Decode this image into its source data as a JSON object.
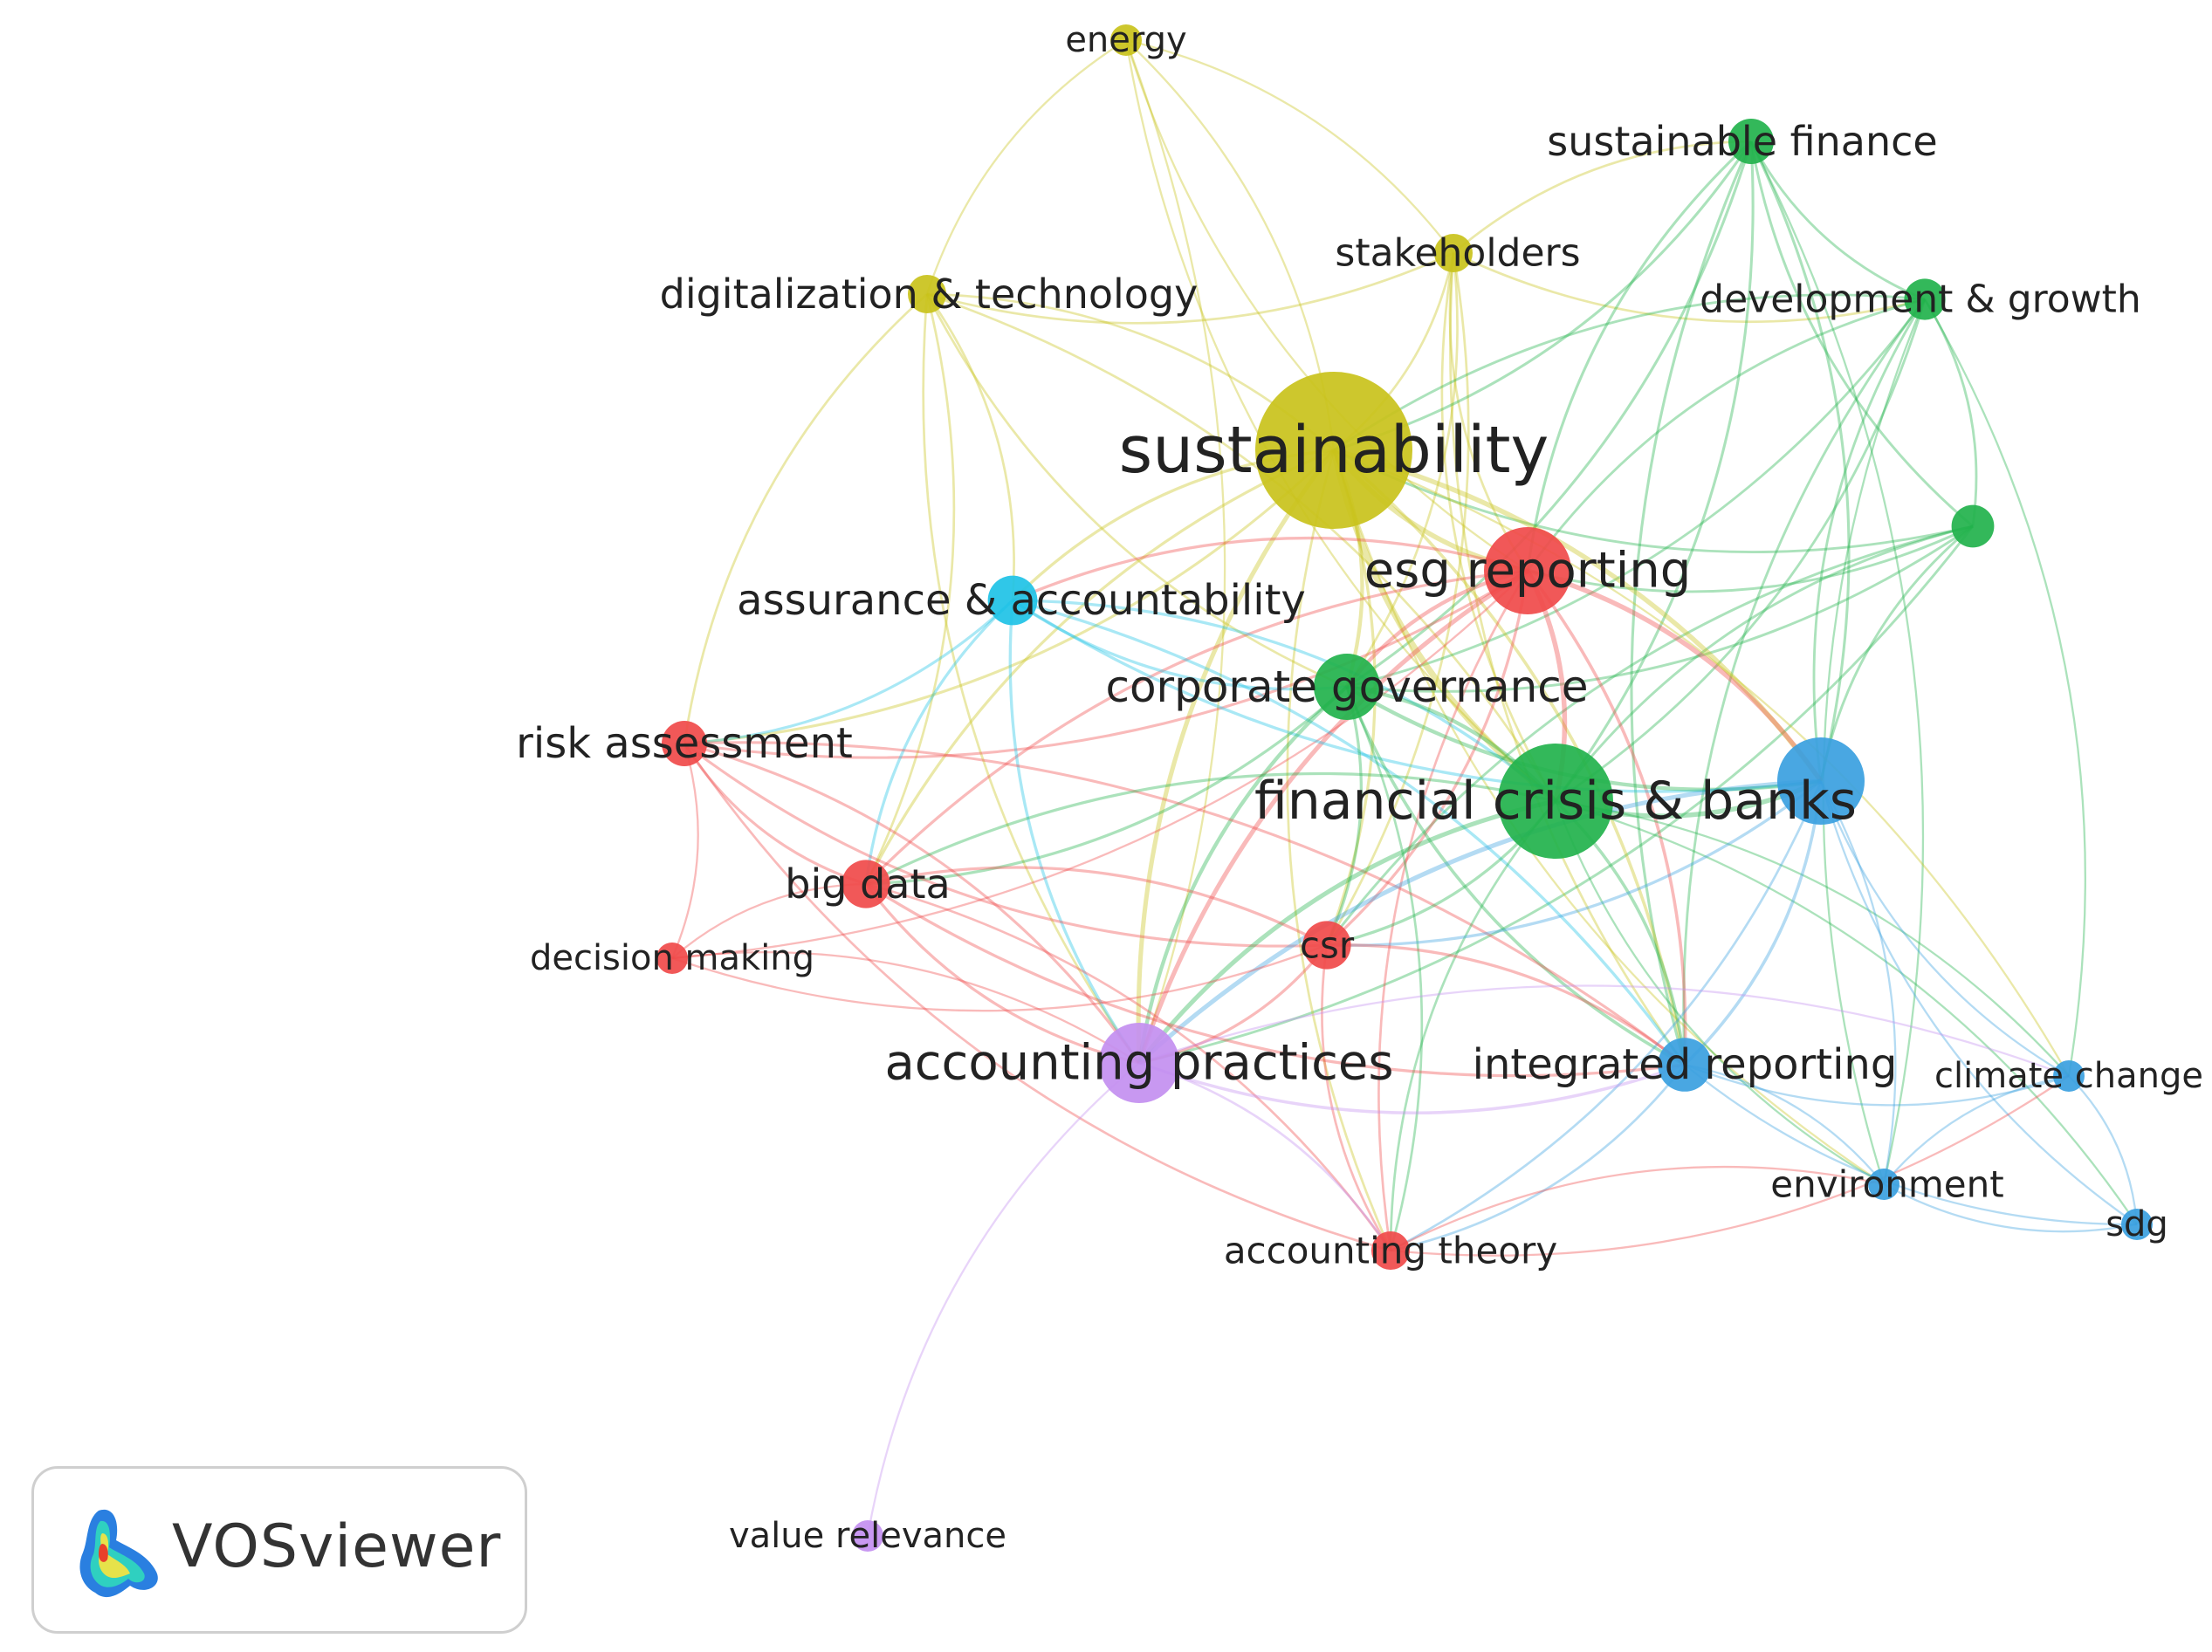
{
  "app": {
    "brand": "VOSviewer"
  },
  "palette": {
    "yellow": "#c9c21b",
    "green": "#22b24c",
    "red": "#f04a4a",
    "cyan": "#1ec2e6",
    "blue": "#3aa0e0",
    "purple": "#c38ff0"
  },
  "nodes": [
    {
      "id": "energy",
      "label": "energy",
      "cluster": "yellow",
      "weight": 1
    },
    {
      "id": "sustainable-finance",
      "label": "sustainable finance",
      "cluster": "green",
      "weight": 2
    },
    {
      "id": "stakeholders",
      "label": "stakeholders",
      "cluster": "yellow",
      "weight": 1.5
    },
    {
      "id": "digitalization",
      "label": "digitalization & technology",
      "cluster": "yellow",
      "weight": 1.5
    },
    {
      "id": "development",
      "label": "development & growth",
      "cluster": "green",
      "weight": 1.7
    },
    {
      "id": "sustainability",
      "label": "sustainability",
      "cluster": "yellow",
      "weight": 10
    },
    {
      "id": "green-unlabeled",
      "label": "",
      "cluster": "green",
      "weight": 1.8
    },
    {
      "id": "esg-reporting",
      "label": "esg reporting",
      "cluster": "red",
      "weight": 5
    },
    {
      "id": "assurance",
      "label": "assurance & accountability",
      "cluster": "cyan",
      "weight": 2.3
    },
    {
      "id": "corporate-governance",
      "label": "corporate governance",
      "cluster": "green",
      "weight": 3.5
    },
    {
      "id": "risk-assessment",
      "label": "risk assessment",
      "cluster": "red",
      "weight": 2
    },
    {
      "id": "financial-crisis",
      "label": "financial crisis & banks",
      "cluster": "green",
      "weight": 7
    },
    {
      "id": "blue-big",
      "label": "",
      "cluster": "blue",
      "weight": 5
    },
    {
      "id": "big-data",
      "label": "big data",
      "cluster": "red",
      "weight": 2.2
    },
    {
      "id": "decision-making",
      "label": "decision making",
      "cluster": "red",
      "weight": 1
    },
    {
      "id": "csr",
      "label": "csr",
      "cluster": "red",
      "weight": 2.2
    },
    {
      "id": "accounting-practices",
      "label": "accounting practices",
      "cluster": "purple",
      "weight": 4.5
    },
    {
      "id": "integrated-reporting",
      "label": "integrated reporting",
      "cluster": "blue",
      "weight": 2.6
    },
    {
      "id": "climate-change",
      "label": "climate change",
      "cluster": "blue",
      "weight": 1
    },
    {
      "id": "environment",
      "label": "environment",
      "cluster": "blue",
      "weight": 1
    },
    {
      "id": "sdg",
      "label": "sdg",
      "cluster": "blue",
      "weight": 1
    },
    {
      "id": "accounting-theory",
      "label": "accounting theory",
      "cluster": "red",
      "weight": 1.5
    },
    {
      "id": "value-relevance",
      "label": "value relevance",
      "cluster": "purple",
      "weight": 1
    }
  ],
  "links": [
    [
      "energy",
      "sustainability"
    ],
    [
      "energy",
      "digitalization"
    ],
    [
      "energy",
      "stakeholders"
    ],
    [
      "energy",
      "esg-reporting"
    ],
    [
      "energy",
      "accounting-practices"
    ],
    [
      "energy",
      "financial-crisis"
    ],
    [
      "digitalization",
      "sustainability"
    ],
    [
      "digitalization",
      "stakeholders"
    ],
    [
      "digitalization",
      "assurance"
    ],
    [
      "digitalization",
      "risk-assessment"
    ],
    [
      "digitalization",
      "big-data"
    ],
    [
      "digitalization",
      "accounting-practices"
    ],
    [
      "digitalization",
      "financial-crisis"
    ],
    [
      "digitalization",
      "corporate-governance"
    ],
    [
      "stakeholders",
      "sustainability"
    ],
    [
      "stakeholders",
      "esg-reporting"
    ],
    [
      "stakeholders",
      "corporate-governance"
    ],
    [
      "stakeholders",
      "financial-crisis"
    ],
    [
      "stakeholders",
      "sustainable-finance"
    ],
    [
      "stakeholders",
      "development"
    ],
    [
      "stakeholders",
      "csr"
    ],
    [
      "stakeholders",
      "integrated-reporting"
    ],
    [
      "sustainable-finance",
      "sustainability"
    ],
    [
      "sustainable-finance",
      "development"
    ],
    [
      "sustainable-finance",
      "financial-crisis"
    ],
    [
      "sustainable-finance",
      "esg-reporting"
    ],
    [
      "sustainable-finance",
      "corporate-governance"
    ],
    [
      "sustainable-finance",
      "green-unlabeled"
    ],
    [
      "sustainable-finance",
      "blue-big"
    ],
    [
      "sustainable-finance",
      "integrated-reporting"
    ],
    [
      "sustainable-finance",
      "environment"
    ],
    [
      "development",
      "sustainability"
    ],
    [
      "development",
      "financial-crisis"
    ],
    [
      "development",
      "esg-reporting"
    ],
    [
      "development",
      "green-unlabeled"
    ],
    [
      "development",
      "blue-big"
    ],
    [
      "development",
      "corporate-governance"
    ],
    [
      "development",
      "integrated-reporting"
    ],
    [
      "development",
      "climate-change"
    ],
    [
      "development",
      "environment"
    ],
    [
      "green-unlabeled",
      "esg-reporting"
    ],
    [
      "green-unlabeled",
      "financial-crisis"
    ],
    [
      "green-unlabeled",
      "sustainability"
    ],
    [
      "green-unlabeled",
      "blue-big"
    ],
    [
      "green-unlabeled",
      "corporate-governance"
    ],
    [
      "green-unlabeled",
      "csr"
    ],
    [
      "green-unlabeled",
      "accounting-practices"
    ],
    [
      "sustainability",
      "esg-reporting"
    ],
    [
      "sustainability",
      "corporate-governance"
    ],
    [
      "sustainability",
      "financial-crisis"
    ],
    [
      "sustainability",
      "blue-big"
    ],
    [
      "sustainability",
      "assurance"
    ],
    [
      "sustainability",
      "risk-assessment"
    ],
    [
      "sustainability",
      "big-data"
    ],
    [
      "sustainability",
      "csr"
    ],
    [
      "sustainability",
      "accounting-practices"
    ],
    [
      "sustainability",
      "integrated-reporting"
    ],
    [
      "sustainability",
      "accounting-theory"
    ],
    [
      "sustainability",
      "climate-change"
    ],
    [
      "sustainability",
      "environment"
    ],
    [
      "esg-reporting",
      "financial-crisis"
    ],
    [
      "esg-reporting",
      "corporate-governance"
    ],
    [
      "esg-reporting",
      "blue-big"
    ],
    [
      "esg-reporting",
      "assurance"
    ],
    [
      "esg-reporting",
      "risk-assessment"
    ],
    [
      "esg-reporting",
      "big-data"
    ],
    [
      "esg-reporting",
      "csr"
    ],
    [
      "esg-reporting",
      "accounting-practices"
    ],
    [
      "esg-reporting",
      "integrated-reporting"
    ],
    [
      "esg-reporting",
      "accounting-theory"
    ],
    [
      "esg-reporting",
      "decision-making"
    ],
    [
      "assurance",
      "corporate-governance"
    ],
    [
      "assurance",
      "financial-crisis"
    ],
    [
      "assurance",
      "blue-big"
    ],
    [
      "assurance",
      "risk-assessment"
    ],
    [
      "assurance",
      "big-data"
    ],
    [
      "assurance",
      "integrated-reporting"
    ],
    [
      "assurance",
      "accounting-practices"
    ],
    [
      "corporate-governance",
      "financial-crisis"
    ],
    [
      "corporate-governance",
      "blue-big"
    ],
    [
      "corporate-governance",
      "csr"
    ],
    [
      "corporate-governance",
      "accounting-practices"
    ],
    [
      "corporate-governance",
      "big-data"
    ],
    [
      "corporate-governance",
      "integrated-reporting"
    ],
    [
      "corporate-governance",
      "accounting-theory"
    ],
    [
      "risk-assessment",
      "big-data"
    ],
    [
      "risk-assessment",
      "decision-making"
    ],
    [
      "risk-assessment",
      "csr"
    ],
    [
      "risk-assessment",
      "accounting-practices"
    ],
    [
      "risk-assessment",
      "accounting-theory"
    ],
    [
      "risk-assessment",
      "integrated-reporting"
    ],
    [
      "financial-crisis",
      "blue-big"
    ],
    [
      "financial-crisis",
      "csr"
    ],
    [
      "financial-crisis",
      "accounting-practices"
    ],
    [
      "financial-crisis",
      "integrated-reporting"
    ],
    [
      "financial-crisis",
      "big-data"
    ],
    [
      "financial-crisis",
      "climate-change"
    ],
    [
      "financial-crisis",
      "environment"
    ],
    [
      "financial-crisis",
      "sdg"
    ],
    [
      "financial-crisis",
      "accounting-theory"
    ],
    [
      "blue-big",
      "integrated-reporting"
    ],
    [
      "blue-big",
      "climate-change"
    ],
    [
      "blue-big",
      "environment"
    ],
    [
      "blue-big",
      "sdg"
    ],
    [
      "blue-big",
      "csr"
    ],
    [
      "blue-big",
      "accounting-practices"
    ],
    [
      "blue-big",
      "accounting-theory"
    ],
    [
      "big-data",
      "decision-making"
    ],
    [
      "big-data",
      "csr"
    ],
    [
      "big-data",
      "accounting-practices"
    ],
    [
      "big-data",
      "accounting-theory"
    ],
    [
      "big-data",
      "integrated-reporting"
    ],
    [
      "decision-making",
      "accounting-practices"
    ],
    [
      "decision-making",
      "csr"
    ],
    [
      "csr",
      "accounting-practices"
    ],
    [
      "csr",
      "accounting-theory"
    ],
    [
      "csr",
      "integrated-reporting"
    ],
    [
      "accounting-practices",
      "integrated-reporting"
    ],
    [
      "accounting-practices",
      "accounting-theory"
    ],
    [
      "accounting-practices",
      "value-relevance"
    ],
    [
      "accounting-practices",
      "climate-change"
    ],
    [
      "integrated-reporting",
      "climate-change"
    ],
    [
      "integrated-reporting",
      "environment"
    ],
    [
      "integrated-reporting",
      "sdg"
    ],
    [
      "integrated-reporting",
      "accounting-theory"
    ],
    [
      "climate-change",
      "environment"
    ],
    [
      "climate-change",
      "sdg"
    ],
    [
      "environment",
      "sdg"
    ],
    [
      "accounting-theory",
      "environment"
    ],
    [
      "accounting-theory",
      "climate-change"
    ]
  ]
}
